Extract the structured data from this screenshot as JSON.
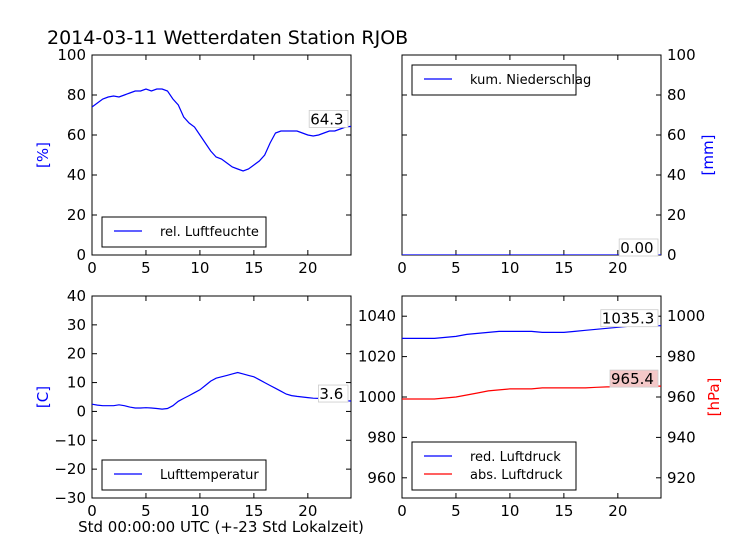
{
  "title": "2014-03-11 Wetterdaten Station RJOB",
  "xlabel": "Std 00:00:00 UTC (+-23 Std Lokalzeit)",
  "colors": {
    "blue": "#0000ff",
    "red": "#ff0000",
    "lastval_bg_red": "#f4c8c8"
  },
  "chart_data": [
    {
      "type": "line",
      "panel": "top-left",
      "ylabel": "[%]",
      "xlim": [
        0,
        24
      ],
      "ylim": [
        0,
        100
      ],
      "xticks": [
        0,
        5,
        10,
        15,
        20
      ],
      "yticks": [
        0,
        20,
        40,
        60,
        80,
        100
      ],
      "legend": "lower-left",
      "last_value_label": "64.3",
      "series": [
        {
          "name": "rel. Luftfeuchte",
          "color": "#0000ff",
          "x": [
            0,
            0.5,
            1,
            1.5,
            2,
            2.5,
            3,
            3.5,
            4,
            4.5,
            5,
            5.5,
            6,
            6.5,
            7,
            7.5,
            8,
            8.5,
            9,
            9.5,
            10,
            10.5,
            11,
            11.5,
            12,
            12.5,
            13,
            13.5,
            14,
            14.5,
            15,
            15.5,
            16,
            16.5,
            17,
            17.5,
            18,
            18.5,
            19,
            19.5,
            20,
            20.5,
            21,
            21.5,
            22,
            22.5,
            23,
            23.5,
            24
          ],
          "values": [
            74,
            76,
            78,
            79,
            79.5,
            79,
            80,
            81,
            82,
            82,
            83,
            82,
            83,
            83,
            82,
            78,
            75,
            69,
            66,
            64,
            60,
            56,
            52,
            49,
            48,
            46,
            44,
            43,
            42,
            43,
            45,
            47,
            50,
            56,
            61,
            62,
            62,
            62,
            62,
            61,
            60,
            59.5,
            60,
            61,
            62,
            62,
            63,
            64,
            64.3
          ]
        }
      ]
    },
    {
      "type": "line",
      "panel": "top-right",
      "ylabel": "[mm]",
      "xlim": [
        0,
        24
      ],
      "ylim": [
        0,
        100
      ],
      "xticks": [
        0,
        5,
        10,
        15,
        20
      ],
      "yticks": [
        0,
        20,
        40,
        60,
        80,
        100
      ],
      "legend": "upper-left",
      "last_value_label": "0.00",
      "series": [
        {
          "name": "kum. Niederschlag",
          "color": "#0000ff",
          "x": [
            0,
            24
          ],
          "values": [
            0,
            0
          ]
        }
      ]
    },
    {
      "type": "line",
      "panel": "bottom-left",
      "ylabel": "[C]",
      "xlim": [
        0,
        24
      ],
      "ylim": [
        -30,
        40
      ],
      "xticks": [
        0,
        5,
        10,
        15,
        20
      ],
      "yticks": [
        -30,
        -20,
        -10,
        0,
        10,
        20,
        30,
        40
      ],
      "legend": "lower-left",
      "last_value_label": "3.6",
      "series": [
        {
          "name": "Lufttemperatur",
          "color": "#0000ff",
          "x": [
            0,
            0.5,
            1,
            1.5,
            2,
            2.5,
            3,
            3.5,
            4,
            4.5,
            5,
            5.5,
            6,
            6.5,
            7,
            7.5,
            8,
            8.5,
            9,
            9.5,
            10,
            10.5,
            11,
            11.5,
            12,
            12.5,
            13,
            13.5,
            14,
            14.5,
            15,
            15.5,
            16,
            16.5,
            17,
            17.5,
            18,
            18.5,
            19,
            19.5,
            20,
            20.5,
            21,
            21.5,
            22,
            22.5,
            23,
            23.5,
            24
          ],
          "values": [
            2.5,
            2.2,
            2.0,
            2.0,
            2.0,
            2.3,
            2.0,
            1.5,
            1.2,
            1.2,
            1.3,
            1.2,
            1.0,
            0.8,
            1.0,
            2.0,
            3.5,
            4.5,
            5.5,
            6.5,
            7.5,
            9.0,
            10.5,
            11.5,
            12.0,
            12.5,
            13.0,
            13.5,
            13.0,
            12.5,
            12.0,
            11.0,
            10.0,
            9.0,
            8.0,
            7.0,
            6.0,
            5.5,
            5.2,
            5.0,
            4.8,
            4.6,
            4.5,
            4.4,
            4.3,
            4.0,
            3.8,
            3.7,
            3.6
          ]
        }
      ]
    },
    {
      "type": "line",
      "panel": "bottom-right",
      "ylabel_right": "[hPa]",
      "xlim": [
        0,
        24
      ],
      "ylim_left": [
        950,
        1050
      ],
      "ylim_right": [
        910,
        1010
      ],
      "xticks": [
        0,
        5,
        10,
        15,
        20
      ],
      "yticks_left": [
        960,
        980,
        1000,
        1020,
        1040
      ],
      "yticks_right": [
        920,
        940,
        960,
        980,
        1000
      ],
      "legend": "lower-left",
      "last_value_labels": [
        "1035.3",
        "965.4"
      ],
      "series": [
        {
          "name": "red. Luftdruck",
          "axis": "left",
          "color": "#0000ff",
          "x": [
            0,
            1,
            2,
            3,
            4,
            5,
            6,
            7,
            8,
            9,
            10,
            11,
            12,
            13,
            14,
            15,
            16,
            17,
            18,
            19,
            20,
            21,
            22,
            23,
            24
          ],
          "values": [
            1029,
            1029,
            1029,
            1029,
            1029.5,
            1030,
            1031,
            1031.5,
            1032,
            1032.5,
            1032.5,
            1032.5,
            1032.5,
            1032,
            1032,
            1032,
            1032.5,
            1033,
            1033.5,
            1034,
            1034.5,
            1035,
            1035,
            1035.2,
            1035.3
          ]
        },
        {
          "name": "abs. Luftdruck",
          "axis": "right",
          "color": "#ff0000",
          "x": [
            0,
            1,
            2,
            3,
            4,
            5,
            6,
            7,
            8,
            9,
            10,
            11,
            12,
            13,
            14,
            15,
            16,
            17,
            18,
            19,
            20,
            21,
            22,
            23,
            24
          ],
          "values": [
            959,
            959,
            959,
            959,
            959.5,
            960,
            961,
            962,
            963,
            963.5,
            964,
            964,
            964,
            964.5,
            964.5,
            964.5,
            964.5,
            964.5,
            964.8,
            965,
            965,
            965.2,
            965.3,
            965.4,
            965.4
          ]
        }
      ]
    }
  ]
}
